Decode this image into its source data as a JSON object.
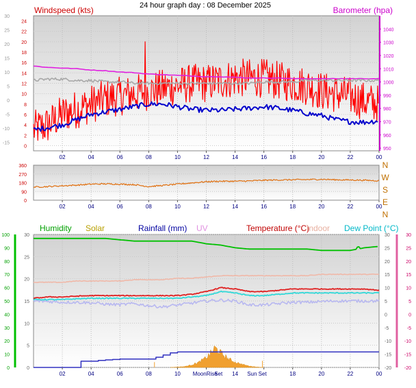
{
  "chart_data": [
    {
      "type": "line",
      "title": "24 hour graph day : 08 December 2025",
      "left_axis_title": "Windspeed (kts)",
      "right_axis_title": "Barometer (hpa)",
      "xticks": [
        "02",
        "04",
        "06",
        "08",
        "10",
        "12",
        "14",
        "16",
        "18",
        "20",
        "22",
        "00"
      ],
      "left_ticks_red": [
        0,
        2,
        4,
        6,
        8,
        10,
        12,
        14,
        16,
        18,
        20,
        22,
        24
      ],
      "left_ticks_gray": [
        -15,
        -10,
        -5,
        0,
        5,
        10,
        15,
        20,
        25,
        30
      ],
      "right_ticks": [
        950,
        960,
        970,
        980,
        990,
        1000,
        1010,
        1020,
        1030,
        1040
      ],
      "ylim_wind": [
        -1,
        25
      ],
      "ylim_baro": [
        948,
        1050
      ],
      "ylim_gray": [
        -18,
        30
      ],
      "x_hours": [
        0,
        1,
        2,
        3,
        4,
        5,
        6,
        7,
        8,
        9,
        10,
        11,
        12,
        13,
        14,
        15,
        16,
        17,
        18,
        19,
        20,
        21,
        22,
        23,
        24
      ],
      "series": [
        {
          "key": "gust",
          "color": "#ff0000",
          "values": [
            3,
            4,
            6,
            7,
            8,
            9,
            9.5,
            10,
            10.5,
            11,
            11.5,
            12,
            12,
            12.5,
            13,
            13,
            13,
            12.5,
            12,
            11.5,
            10.5,
            10,
            9.5,
            8.5,
            8
          ]
        },
        {
          "key": "average",
          "color": "#0000cc",
          "values": [
            3,
            3.5,
            4,
            5,
            6,
            6.5,
            7,
            7.5,
            8,
            8,
            7.5,
            7,
            6.8,
            6.8,
            7,
            7.2,
            7.5,
            7.2,
            6.8,
            6.2,
            5.8,
            5,
            4.6,
            4.5,
            4.8
          ]
        },
        {
          "key": "barometer",
          "color": "#e020e0",
          "values": [
            1012,
            1011,
            1010.5,
            1010,
            1009,
            1008.5,
            1007.5,
            1007,
            1006,
            1005.5,
            1005,
            1004.5,
            1004,
            1004,
            1003.5,
            1003,
            1003,
            1003,
            1002.5,
            1002.5,
            1002.5,
            1002.5,
            1002.5,
            1002.5,
            1002.5
          ]
        },
        {
          "key": "gray",
          "color": "#a8a8a8",
          "values": [
            7,
            7.5,
            7.5,
            7,
            7,
            6.5,
            6.5,
            6,
            6,
            6,
            6,
            6,
            6,
            6,
            6,
            6,
            6.5,
            6.5,
            6.5,
            7,
            7,
            7,
            7,
            7,
            7
          ]
        }
      ]
    },
    {
      "type": "line",
      "left_ticks": [
        0,
        90,
        180,
        270,
        360
      ],
      "right_labels": [
        "N",
        "W",
        "S",
        "E",
        "N"
      ],
      "xticks": [
        "02",
        "04",
        "06",
        "08",
        "10",
        "12",
        "14",
        "16",
        "18",
        "20",
        "22",
        "00"
      ],
      "ylim": [
        0,
        360
      ],
      "x_hours": [
        0,
        1,
        2,
        3,
        4,
        5,
        6,
        7,
        8,
        9,
        10,
        11,
        12,
        13,
        14,
        15,
        16,
        17,
        18,
        19,
        20,
        21,
        22,
        23,
        24
      ],
      "series": [
        {
          "key": "direction",
          "color": "#e07010",
          "values": [
            135,
            140,
            148,
            155,
            165,
            168,
            165,
            160,
            140,
            152,
            165,
            178,
            190,
            195,
            195,
            198,
            205,
            208,
            210,
            212,
            215,
            210,
            208,
            205,
            200
          ]
        }
      ]
    },
    {
      "type": "line",
      "legend": [
        "Humidity",
        "Solar",
        "Rainfall (mm)",
        "UV",
        "Temperature (°C)",
        "Indoor",
        "Dew Point (°C)"
      ],
      "legend_colors": [
        "#00a000",
        "#b8a000",
        "#0000a0",
        "#e090e0",
        "#c00000",
        "#e8b0a0",
        "#00c8c8"
      ],
      "left_ticks_green": [
        0,
        10,
        20,
        30,
        40,
        50,
        60,
        70,
        80,
        90,
        100
      ],
      "left_ticks_gray": [
        0,
        5,
        10,
        15,
        20,
        25,
        30
      ],
      "right_ticks_gray": [
        -20,
        -15,
        -10,
        -5,
        0,
        5,
        10,
        15,
        20,
        25,
        30
      ],
      "right_ticks_pink": [
        -20,
        -15,
        -10,
        -5,
        0,
        5,
        10,
        15,
        20,
        25,
        30
      ],
      "xticks": [
        "02",
        "04",
        "06",
        "08",
        "10",
        "12",
        "14",
        "16",
        "18",
        "20",
        "22",
        "00"
      ],
      "annotations": [
        "MoonRise",
        "Set",
        "Sun Set"
      ],
      "annotation_hours": [
        12.2,
        12.7,
        15.8
      ],
      "ylim_left": [
        0,
        30
      ],
      "ylim_right": [
        -20,
        30
      ],
      "ylim_humidity": [
        0,
        100
      ],
      "x_hours": [
        0,
        1,
        2,
        3,
        4,
        5,
        6,
        7,
        8,
        9,
        10,
        11,
        12,
        13,
        14,
        15,
        16,
        17,
        18,
        19,
        20,
        21,
        22,
        23,
        24
      ],
      "series": [
        {
          "key": "humidity",
          "color": "#00c000",
          "values": [
            97,
            97,
            97,
            97,
            97,
            97,
            96,
            95,
            95,
            95,
            95,
            95,
            93,
            92,
            90,
            89,
            89,
            89,
            89,
            89,
            88,
            88,
            88,
            90,
            91
          ]
        },
        {
          "key": "indoor",
          "color": "#f0b8a8",
          "values": [
            12,
            12,
            12,
            12.5,
            12.5,
            12.5,
            12.5,
            13,
            13,
            13,
            13.5,
            13.5,
            14,
            14.5,
            14.5,
            14.5,
            14.5,
            14.5,
            14.5,
            14.5,
            15,
            15,
            15,
            15,
            15
          ]
        },
        {
          "key": "temperature",
          "color": "#e02020",
          "values": [
            6,
            6.5,
            6.5,
            6.8,
            7,
            7,
            7,
            7,
            7,
            7,
            7,
            7.5,
            8.5,
            10,
            9.5,
            8.5,
            8.5,
            9,
            9.5,
            9.5,
            9.5,
            9.5,
            9.5,
            9.5,
            9
          ]
        },
        {
          "key": "dewpoint",
          "color": "#30d8d8",
          "values": [
            5.5,
            5.5,
            5.5,
            5.8,
            6,
            6,
            6,
            6,
            6,
            6,
            6,
            6.5,
            7,
            8.5,
            8,
            7,
            7,
            7.5,
            8,
            8,
            8,
            8,
            8,
            8,
            8
          ]
        },
        {
          "key": "uvline",
          "color": "#b8b8f0",
          "values": [
            5,
            4.8,
            4.5,
            4.5,
            4.3,
            3.8,
            3.6,
            4,
            3.2,
            2.8,
            3.5,
            4.2,
            5,
            5.3,
            5,
            3.5,
            3.5,
            4,
            4.5,
            4.5,
            4.8,
            5,
            5,
            5,
            5
          ]
        },
        {
          "key": "rainfall",
          "color": "#3030c0",
          "hours": [
            0,
            2.1,
            3.3,
            4.5,
            5,
            5.5,
            6,
            8,
            8.5,
            9,
            9.5,
            10,
            24
          ],
          "values": [
            0,
            0,
            1.4,
            1.6,
            1.7,
            1.8,
            1.9,
            1.9,
            2.3,
            2.8,
            3.3,
            3.5,
            3.5
          ]
        },
        {
          "key": "solar",
          "color": "#f0a020",
          "hours": [
            9.5,
            10.5,
            11,
            11.5,
            12,
            12.3,
            12.6,
            13,
            13.5,
            14,
            14.5,
            15,
            15.5,
            16
          ],
          "values": [
            0,
            0.2,
            0.6,
            1.2,
            2.2,
            3.2,
            4.4,
            3.3,
            2,
            1.2,
            0.7,
            0.3,
            0.1,
            0
          ]
        }
      ]
    }
  ]
}
